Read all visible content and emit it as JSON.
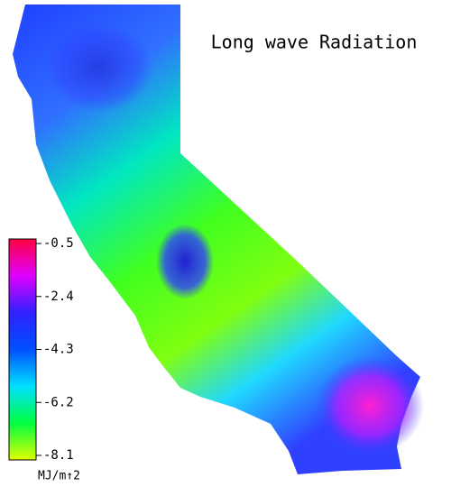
{
  "title": "Long wave Radiation",
  "colorbar": {
    "lim": [
      -8.1,
      -0.5
    ],
    "ticks": [
      -0.5,
      -2.4,
      -4.3,
      -6.2,
      -8.1
    ],
    "unit": "MJ/m↑2",
    "colors": [
      "#ff0040",
      "#e000ff",
      "#3020ff",
      "#0050ff",
      "#00e0ff",
      "#00ff40",
      "#e0ff00"
    ]
  }
}
